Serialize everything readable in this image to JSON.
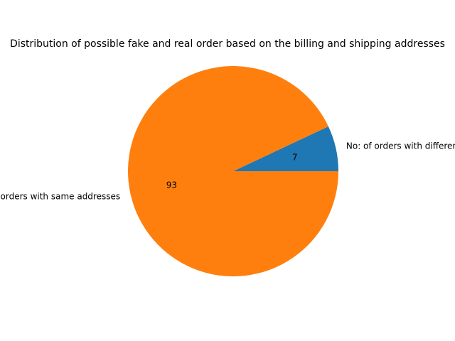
{
  "chart_data": {
    "type": "pie",
    "title": "Distribution of possible fake and real order based on the billing and shipping addresses",
    "slices": [
      {
        "label": "No: of orders with different addresses",
        "value": 7,
        "value_label": "7",
        "color": "#1f77b4"
      },
      {
        "label": "No: of orders with same addresses",
        "value": 93,
        "value_label": "93",
        "color": "#ff7f0e"
      }
    ],
    "start_angle_deg": 0,
    "direction": "counterclockwise",
    "legend": "none"
  }
}
